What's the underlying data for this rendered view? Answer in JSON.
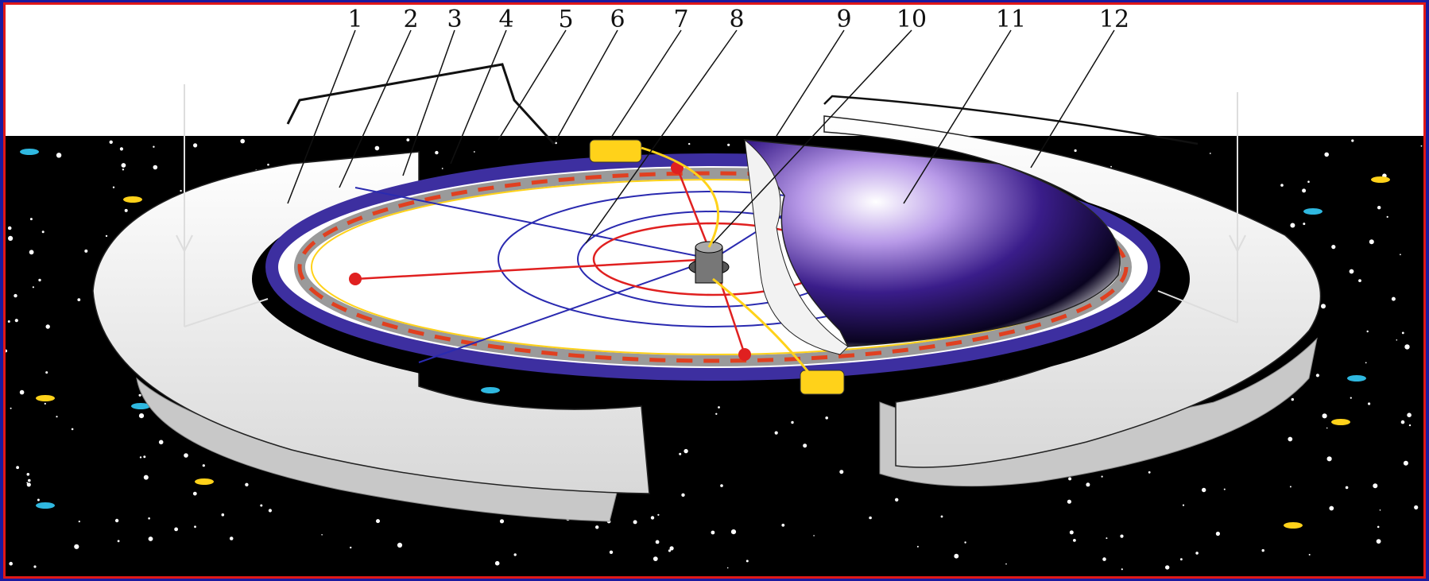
{
  "figure": {
    "labels": [
      "1",
      "2",
      "3",
      "4",
      "5",
      "6",
      "7",
      "8",
      "9",
      "10",
      "11",
      "12"
    ]
  },
  "colors": {
    "space": "#000000",
    "ring_band": "#3d2fa0",
    "red_lines": "#e02020",
    "blue_lines": "#2a2ab0",
    "yellow_parts": "#ffd21a",
    "frame_outer": "#1a1aa0",
    "frame_inner": "#e01818"
  }
}
